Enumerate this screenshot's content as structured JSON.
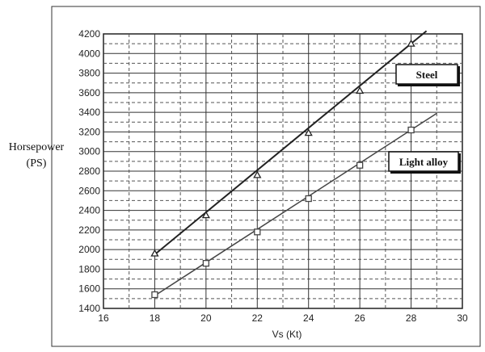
{
  "chart_data": {
    "type": "line",
    "title": "",
    "ylabel": "Horsepower",
    "ylabel_unit": "(PS)",
    "xlabel": "Vs (Kt)",
    "xlim": [
      16,
      30
    ],
    "ylim": [
      1400,
      4200
    ],
    "x_ticks": [
      16,
      18,
      20,
      22,
      24,
      26,
      28,
      30
    ],
    "y_ticks": [
      1400,
      1600,
      1800,
      2000,
      2200,
      2400,
      2600,
      2800,
      3000,
      3200,
      3400,
      3600,
      3800,
      4000,
      4200
    ],
    "grid": true,
    "legend": "none",
    "series": [
      {
        "name": "Steel",
        "marker": "triangle",
        "color": "#222222",
        "x": [
          18,
          20,
          22,
          24,
          26,
          28
        ],
        "y": [
          1960,
          2350,
          2760,
          3190,
          3620,
          4100
        ],
        "trend_x": [
          18,
          28.6
        ],
        "trend_y": [
          1950,
          4230
        ]
      },
      {
        "name": "Light alloy",
        "marker": "square",
        "color": "#444444",
        "x": [
          18,
          20,
          22,
          24,
          26,
          28
        ],
        "y": [
          1540,
          1860,
          2180,
          2520,
          2860,
          3220
        ],
        "trend_x": [
          18,
          29
        ],
        "trend_y": [
          1530,
          3390
        ]
      }
    ]
  }
}
